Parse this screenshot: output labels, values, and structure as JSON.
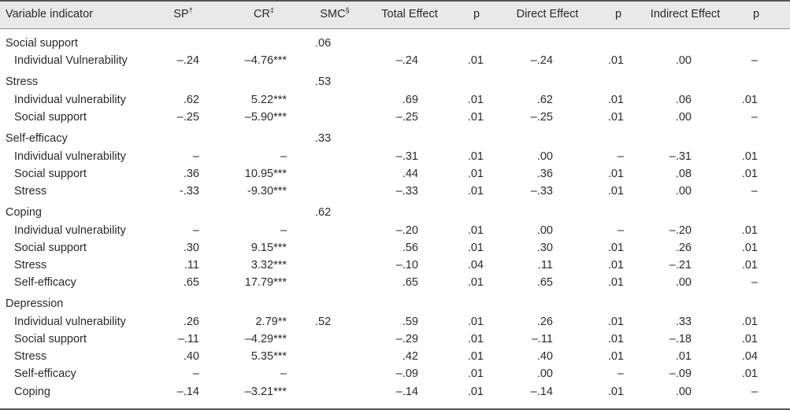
{
  "header": {
    "variable": "Variable  indicator",
    "sp": "SP",
    "sp_mark": "†",
    "cr": "CR",
    "cr_mark": "‡",
    "smc": "SMC",
    "smc_mark": "§",
    "total": "Total Effect",
    "p1": "p",
    "direct": "Direct Effect",
    "p2": "p",
    "indirect": "Indirect Effect",
    "p3": "p"
  },
  "rows": [
    {
      "label": "Social support",
      "group": true,
      "sp": "",
      "cr": "",
      "smc": ".06",
      "total": "",
      "p1": "",
      "direct": "",
      "p2": "",
      "indirect": "",
      "p3": ""
    },
    {
      "label": "Individual Vulnerability",
      "group": false,
      "sp": "–.24",
      "cr": "–4.76***",
      "smc": "",
      "total": "–.24",
      "p1": ".01",
      "direct": "–.24",
      "p2": ".01",
      "indirect": ".00",
      "p3": "–"
    },
    {
      "label": "Stress",
      "group": true,
      "sp": "",
      "cr": "",
      "smc": ".53",
      "total": "",
      "p1": "",
      "direct": "",
      "p2": "",
      "indirect": "",
      "p3": ""
    },
    {
      "label": "Individual vulnerability",
      "group": false,
      "sp": ".62",
      "cr": "5.22***",
      "smc": "",
      "total": ".69",
      "p1": ".01",
      "direct": ".62",
      "p2": ".01",
      "indirect": ".06",
      "p3": ".01"
    },
    {
      "label": "Social support",
      "group": false,
      "sp": "–.25",
      "cr": "–5.90***",
      "smc": "",
      "total": "–.25",
      "p1": ".01",
      "direct": "–.25",
      "p2": ".01",
      "indirect": ".00",
      "p3": "–"
    },
    {
      "label": "Self-efficacy",
      "group": true,
      "sp": "",
      "cr": "",
      "smc": ".33",
      "total": "",
      "p1": "",
      "direct": "",
      "p2": "",
      "indirect": "",
      "p3": ""
    },
    {
      "label": "Individual vulnerability",
      "group": false,
      "sp": "–",
      "cr": "–",
      "smc": "",
      "total": "–.31",
      "p1": ".01",
      "direct": ".00",
      "p2": "–",
      "indirect": "–.31",
      "p3": ".01"
    },
    {
      "label": "Social support",
      "group": false,
      "sp": ".36",
      "cr": "10.95***",
      "smc": "",
      "total": ".44",
      "p1": ".01",
      "direct": ".36",
      "p2": ".01",
      "indirect": ".08",
      "p3": ".01"
    },
    {
      "label": "Stress",
      "group": false,
      "sp": "-.33",
      "cr": "-9.30***",
      "smc": "",
      "total": "–.33",
      "p1": ".01",
      "direct": "–.33",
      "p2": ".01",
      "indirect": ".00",
      "p3": "–"
    },
    {
      "label": "Coping",
      "group": true,
      "sp": "",
      "cr": "",
      "smc": ".62",
      "total": "",
      "p1": "",
      "direct": "",
      "p2": "",
      "indirect": "",
      "p3": ""
    },
    {
      "label": "Individual vulnerability",
      "group": false,
      "sp": "–",
      "cr": "–",
      "smc": "",
      "total": "–.20",
      "p1": ".01",
      "direct": ".00",
      "p2": "–",
      "indirect": "–.20",
      "p3": ".01"
    },
    {
      "label": "Social support",
      "group": false,
      "sp": ".30",
      "cr": "9.15***",
      "smc": "",
      "total": ".56",
      "p1": ".01",
      "direct": ".30",
      "p2": ".01",
      "indirect": ".26",
      "p3": ".01"
    },
    {
      "label": "Stress",
      "group": false,
      "sp": ".11",
      "cr": "3.32***",
      "smc": "",
      "total": "–.10",
      "p1": ".04",
      "direct": ".11",
      "p2": ".01",
      "indirect": "–.21",
      "p3": ".01"
    },
    {
      "label": "Self-efficacy",
      "group": false,
      "sp": ".65",
      "cr": "17.79***",
      "smc": "",
      "total": ".65",
      "p1": ".01",
      "direct": ".65",
      "p2": ".01",
      "indirect": ".00",
      "p3": "–"
    },
    {
      "label": "Depression",
      "group": true,
      "sp": "",
      "cr": "",
      "smc": "",
      "total": "",
      "p1": "",
      "direct": "",
      "p2": "",
      "indirect": "",
      "p3": ""
    },
    {
      "label": "Individual vulnerability",
      "group": false,
      "sp": ".26",
      "cr": "2.79**",
      "smc": ".52",
      "total": ".59",
      "p1": ".01",
      "direct": ".26",
      "p2": ".01",
      "indirect": ".33",
      "p3": ".01"
    },
    {
      "label": "Social support",
      "group": false,
      "sp": "–.11",
      "cr": "–4.29***",
      "smc": "",
      "total": "–.29",
      "p1": ".01",
      "direct": "–.11",
      "p2": ".01",
      "indirect": "–.18",
      "p3": ".01"
    },
    {
      "label": "Stress",
      "group": false,
      "sp": ".40",
      "cr": "5.35***",
      "smc": "",
      "total": ".42",
      "p1": ".01",
      "direct": ".40",
      "p2": ".01",
      "indirect": ".01",
      "p3": ".04"
    },
    {
      "label": "Self-efficacy",
      "group": false,
      "sp": "–",
      "cr": "–",
      "smc": "",
      "total": "–.09",
      "p1": ".01",
      "direct": ".00",
      "p2": "–",
      "indirect": "–.09",
      "p3": ".01"
    },
    {
      "label": "Coping",
      "group": false,
      "sp": "–.14",
      "cr": "–3.21***",
      "smc": "",
      "total": "–.14",
      "p1": ".01",
      "direct": "–.14",
      "p2": ".01",
      "indirect": ".00",
      "p3": "–"
    }
  ]
}
